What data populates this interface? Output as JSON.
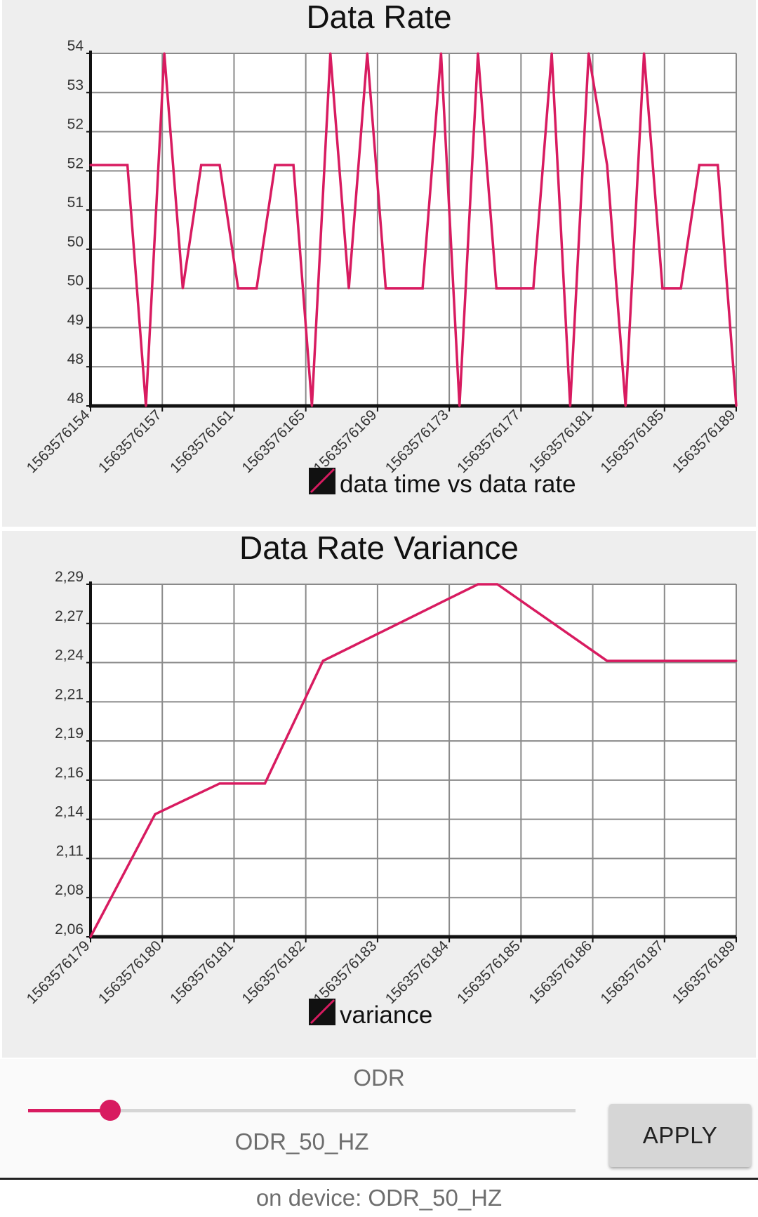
{
  "chart_data": [
    {
      "type": "line",
      "title": "Data Rate",
      "xlabel": "",
      "ylabel": "",
      "x_tick_labels": [
        "1563576154",
        "1563576157",
        "1563576161",
        "1563576165",
        "1563576169",
        "1563576173",
        "1563576177",
        "1563576181",
        "1563576185",
        "1563576189"
      ],
      "y_tick_labels": [
        "48",
        "48",
        "49",
        "50",
        "50",
        "51",
        "52",
        "52",
        "53",
        "54"
      ],
      "ylim": [
        48,
        54
      ],
      "grid": true,
      "legend_position": "bottom-center",
      "series": [
        {
          "name": "data time vs data rate",
          "color": "#d81b60",
          "values": [
            52.1,
            52.1,
            52.1,
            48.0,
            54.0,
            50.0,
            52.1,
            52.1,
            50.0,
            50.0,
            52.1,
            52.1,
            48.0,
            54.0,
            50.0,
            54.0,
            50.0,
            50.0,
            50.0,
            54.0,
            48.0,
            54.0,
            50.0,
            50.0,
            50.0,
            54.0,
            48.0,
            54.0,
            52.1,
            48.0,
            54.0,
            50.0,
            50.0,
            52.1,
            52.1,
            48.0
          ]
        }
      ]
    },
    {
      "type": "line",
      "title": "Data Rate Variance",
      "xlabel": "",
      "ylabel": "",
      "x_tick_labels": [
        "1563576179",
        "1563576180",
        "1563576181",
        "1563576182",
        "1563576183",
        "1563576184",
        "1563576185",
        "1563576186",
        "1563576187",
        "1563576189"
      ],
      "y_tick_labels": [
        "2,06",
        "2,08",
        "2,11",
        "2,14",
        "2,16",
        "2,19",
        "2,21",
        "2,24",
        "2,27",
        "2,29"
      ],
      "ylim": [
        2.06,
        2.29
      ],
      "grid": true,
      "legend_position": "bottom-center",
      "series": [
        {
          "name": "variance",
          "color": "#d81b60",
          "points": [
            [
              1563576179,
              2.06
            ],
            [
              1563576180,
              2.14
            ],
            [
              1563576181,
              2.16
            ],
            [
              1563576181.7,
              2.16
            ],
            [
              1563576182.6,
              2.24
            ],
            [
              1563576185,
              2.29
            ],
            [
              1563576185.3,
              2.29
            ],
            [
              1563576187,
              2.24
            ],
            [
              1563576189,
              2.24
            ]
          ]
        }
      ]
    }
  ],
  "controls": {
    "odr_label": "ODR",
    "slider_value_text": "ODR_50_HZ",
    "slider_level": 0.15,
    "apply_label": "APPLY",
    "device_status": "on device: ODR_50_HZ",
    "accent_color": "#d81b60"
  }
}
